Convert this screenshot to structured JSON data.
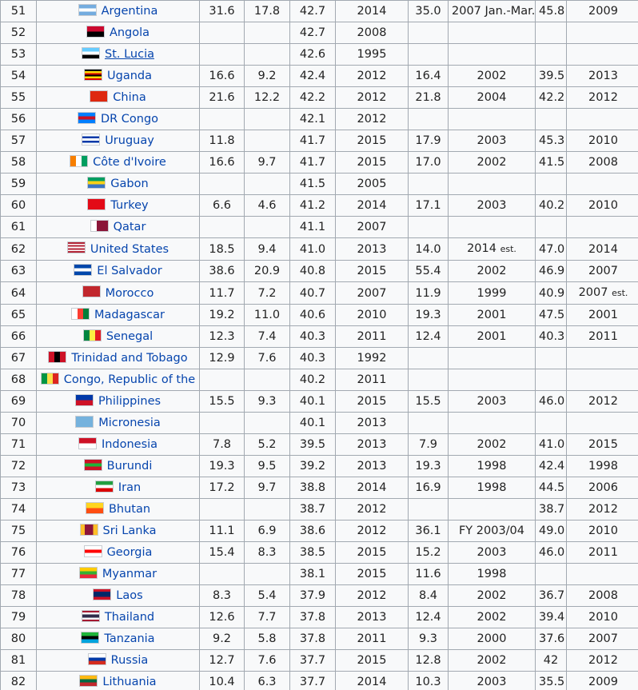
{
  "table": {
    "rows": [
      {
        "rank": "51",
        "country": "Argentina",
        "flag": [
          "#74acdf",
          "#ffffff",
          "#74acdf"
        ],
        "flag_dir": "h",
        "c1": "31.6",
        "c2": "17.8",
        "c3": "42.7",
        "c4": "2014",
        "c5": "35.0",
        "c6": "2007 Jan.-Mar.",
        "c7": "45.8",
        "c8": "2009"
      },
      {
        "rank": "52",
        "country": "Angola",
        "flag": [
          "#cc092f",
          "#000000"
        ],
        "flag_dir": "h",
        "c1": "",
        "c2": "",
        "c3": "42.7",
        "c4": "2008",
        "c5": "",
        "c6": "",
        "c7": "",
        "c8": ""
      },
      {
        "rank": "53",
        "country": "St. Lucia",
        "flag": [
          "#66ccff",
          "#ffffff",
          "#000000"
        ],
        "flag_dir": "h",
        "underline": true,
        "c1": "",
        "c2": "",
        "c3": "42.6",
        "c4": "1995",
        "c5": "",
        "c6": "",
        "c7": "",
        "c8": ""
      },
      {
        "rank": "54",
        "country": "Uganda",
        "flag": [
          "#000000",
          "#fcdc04",
          "#d90000",
          "#000000",
          "#fcdc04",
          "#d90000"
        ],
        "flag_dir": "h",
        "c1": "16.6",
        "c2": "9.2",
        "c3": "42.4",
        "c4": "2012",
        "c5": "16.4",
        "c6": "2002",
        "c7": "39.5",
        "c8": "2013"
      },
      {
        "rank": "55",
        "country": "China",
        "flag": [
          "#de2910"
        ],
        "flag_dir": "h",
        "c1": "21.6",
        "c2": "12.2",
        "c3": "42.2",
        "c4": "2012",
        "c5": "21.8",
        "c6": "2004",
        "c7": "42.2",
        "c8": "2012"
      },
      {
        "rank": "56",
        "country": "DR Congo",
        "flag": [
          "#007fff",
          "#ce1021",
          "#007fff"
        ],
        "flag_dir": "h",
        "c1": "",
        "c2": "",
        "c3": "42.1",
        "c4": "2012",
        "c5": "",
        "c6": "",
        "c7": "",
        "c8": ""
      },
      {
        "rank": "57",
        "country": "Uruguay",
        "flag": [
          "#ffffff",
          "#0038a8",
          "#ffffff",
          "#0038a8",
          "#ffffff"
        ],
        "flag_dir": "h",
        "c1": "11.8",
        "c2": "",
        "c3": "41.7",
        "c4": "2015",
        "c5": "17.9",
        "c6": "2003",
        "c7": "45.3",
        "c8": "2010"
      },
      {
        "rank": "58",
        "country": "Côte d'Ivoire",
        "flag": [
          "#f77f00",
          "#ffffff",
          "#009e60"
        ],
        "flag_dir": "v",
        "c1": "16.6",
        "c2": "9.7",
        "c3": "41.7",
        "c4": "2015",
        "c5": "17.0",
        "c6": "2002",
        "c7": "41.5",
        "c8": "2008"
      },
      {
        "rank": "59",
        "country": "Gabon",
        "flag": [
          "#009e60",
          "#fcd116",
          "#3a75c4"
        ],
        "flag_dir": "h",
        "c1": "",
        "c2": "",
        "c3": "41.5",
        "c4": "2005",
        "c5": "",
        "c6": "",
        "c7": "",
        "c8": ""
      },
      {
        "rank": "60",
        "country": "Turkey",
        "flag": [
          "#e30a17"
        ],
        "flag_dir": "h",
        "c1": "6.6",
        "c2": "4.6",
        "c3": "41.2",
        "c4": "2014",
        "c5": "17.1",
        "c6": "2003",
        "c7": "40.2",
        "c8": "2010"
      },
      {
        "rank": "61",
        "country": "Qatar",
        "flag": [
          "#ffffff",
          "#8a1538",
          "#8a1538"
        ],
        "flag_dir": "v",
        "c1": "",
        "c2": "",
        "c3": "41.1",
        "c4": "2007",
        "c5": "",
        "c6": "",
        "c7": "",
        "c8": ""
      },
      {
        "rank": "62",
        "country": "United States",
        "flag": [
          "#b22234",
          "#ffffff",
          "#b22234",
          "#ffffff",
          "#b22234",
          "#ffffff",
          "#b22234"
        ],
        "flag_dir": "h",
        "c1": "18.5",
        "c2": "9.4",
        "c3": "41.0",
        "c4": "2013",
        "c5": "14.0",
        "c6": "2014",
        "c6_suffix": "est.",
        "c7": "47.0",
        "c8": "2014"
      },
      {
        "rank": "63",
        "country": "El Salvador",
        "flag": [
          "#0047ab",
          "#ffffff",
          "#0047ab"
        ],
        "flag_dir": "h",
        "c1": "38.6",
        "c2": "20.9",
        "c3": "40.8",
        "c4": "2015",
        "c5": "55.4",
        "c6": "2002",
        "c7": "46.9",
        "c8": "2007"
      },
      {
        "rank": "64",
        "country": "Morocco",
        "flag": [
          "#c1272d"
        ],
        "flag_dir": "h",
        "c1": "11.7",
        "c2": "7.2",
        "c3": "40.7",
        "c4": "2007",
        "c5": "11.9",
        "c6": "1999",
        "c7": "40.9",
        "c8": "2007",
        "c8_suffix": "est."
      },
      {
        "rank": "65",
        "country": "Madagascar",
        "flag": [
          "#ffffff",
          "#fc3d32",
          "#007e3a"
        ],
        "flag_dir": "v",
        "c1": "19.2",
        "c2": "11.0",
        "c3": "40.6",
        "c4": "2010",
        "c5": "19.3",
        "c6": "2001",
        "c7": "47.5",
        "c8": "2001"
      },
      {
        "rank": "66",
        "country": "Senegal",
        "flag": [
          "#00853f",
          "#fdef42",
          "#e31b23"
        ],
        "flag_dir": "v",
        "c1": "12.3",
        "c2": "7.4",
        "c3": "40.3",
        "c4": "2011",
        "c5": "12.4",
        "c6": "2001",
        "c7": "40.3",
        "c8": "2011"
      },
      {
        "rank": "67",
        "country": "Trinidad and Tobago",
        "flag": [
          "#ce1126",
          "#000000",
          "#ce1126"
        ],
        "flag_dir": "v",
        "c1": "12.9",
        "c2": "7.6",
        "c3": "40.3",
        "c4": "1992",
        "c5": "",
        "c6": "",
        "c7": "",
        "c8": ""
      },
      {
        "rank": "68",
        "country": "Congo, Republic of the",
        "flag": [
          "#009543",
          "#fbde4a",
          "#dc241f"
        ],
        "flag_dir": "v",
        "c1": "",
        "c2": "",
        "c3": "40.2",
        "c4": "2011",
        "c5": "",
        "c6": "",
        "c7": "",
        "c8": ""
      },
      {
        "rank": "69",
        "country": "Philippines",
        "flag": [
          "#0038a8",
          "#ce1126"
        ],
        "flag_dir": "h",
        "c1": "15.5",
        "c2": "9.3",
        "c3": "40.1",
        "c4": "2015",
        "c5": "15.5",
        "c6": "2003",
        "c7": "46.0",
        "c8": "2012"
      },
      {
        "rank": "70",
        "country": "Micronesia",
        "flag": [
          "#75b2dd"
        ],
        "flag_dir": "h",
        "c1": "",
        "c2": "",
        "c3": "40.1",
        "c4": "2013",
        "c5": "",
        "c6": "",
        "c7": "",
        "c8": ""
      },
      {
        "rank": "71",
        "country": "Indonesia",
        "flag": [
          "#ce1126",
          "#ffffff"
        ],
        "flag_dir": "h",
        "c1": "7.8",
        "c2": "5.2",
        "c3": "39.5",
        "c4": "2013",
        "c5": "7.9",
        "c6": "2002",
        "c7": "41.0",
        "c8": "2015"
      },
      {
        "rank": "72",
        "country": "Burundi",
        "flag": [
          "#ce1126",
          "#1eb53a",
          "#ce1126"
        ],
        "flag_dir": "h",
        "c1": "19.3",
        "c2": "9.5",
        "c3": "39.2",
        "c4": "2013",
        "c5": "19.3",
        "c6": "1998",
        "c7": "42.4",
        "c8": "1998"
      },
      {
        "rank": "73",
        "country": "Iran",
        "flag": [
          "#239f40",
          "#ffffff",
          "#da0000"
        ],
        "flag_dir": "h",
        "c1": "17.2",
        "c2": "9.7",
        "c3": "38.8",
        "c4": "2014",
        "c5": "16.9",
        "c6": "1998",
        "c7": "44.5",
        "c8": "2006"
      },
      {
        "rank": "74",
        "country": "Bhutan",
        "flag": [
          "#ffd520",
          "#ff4e12"
        ],
        "flag_dir": "h",
        "c1": "",
        "c2": "",
        "c3": "38.7",
        "c4": "2012",
        "c5": "",
        "c6": "",
        "c7": "38.7",
        "c8": "2012"
      },
      {
        "rank": "75",
        "country": "Sri Lanka",
        "flag": [
          "#ffbe29",
          "#8d153a",
          "#8d153a",
          "#ffbe29"
        ],
        "flag_dir": "v",
        "c1": "11.1",
        "c2": "6.9",
        "c3": "38.6",
        "c4": "2012",
        "c5": "36.1",
        "c6": "FY 2003/04",
        "c7": "49.0",
        "c8": "2010"
      },
      {
        "rank": "76",
        "country": "Georgia",
        "flag": [
          "#ffffff",
          "#ff0000",
          "#ffffff"
        ],
        "flag_dir": "h",
        "c1": "15.4",
        "c2": "8.3",
        "c3": "38.5",
        "c4": "2015",
        "c5": "15.2",
        "c6": "2003",
        "c7": "46.0",
        "c8": "2011"
      },
      {
        "rank": "77",
        "country": "Myanmar",
        "flag": [
          "#fecb00",
          "#34b233",
          "#ea2839"
        ],
        "flag_dir": "h",
        "c1": "",
        "c2": "",
        "c3": "38.1",
        "c4": "2015",
        "c5": "11.6",
        "c6": "1998",
        "c7": "",
        "c8": ""
      },
      {
        "rank": "78",
        "country": "Laos",
        "flag": [
          "#ce1126",
          "#002868",
          "#002868",
          "#ce1126"
        ],
        "flag_dir": "h",
        "c1": "8.3",
        "c2": "5.4",
        "c3": "37.9",
        "c4": "2012",
        "c5": "8.4",
        "c6": "2002",
        "c7": "36.7",
        "c8": "2008"
      },
      {
        "rank": "79",
        "country": "Thailand",
        "flag": [
          "#a51931",
          "#f4f5f8",
          "#2d2a4a",
          "#2d2a4a",
          "#f4f5f8",
          "#a51931"
        ],
        "flag_dir": "h",
        "c1": "12.6",
        "c2": "7.7",
        "c3": "37.8",
        "c4": "2013",
        "c5": "12.4",
        "c6": "2002",
        "c7": "39.4",
        "c8": "2010"
      },
      {
        "rank": "80",
        "country": "Tanzania",
        "flag": [
          "#1eb53a",
          "#000000",
          "#00a3dd"
        ],
        "flag_dir": "h",
        "c1": "9.2",
        "c2": "5.8",
        "c3": "37.8",
        "c4": "2011",
        "c5": "9.3",
        "c6": "2000",
        "c7": "37.6",
        "c8": "2007"
      },
      {
        "rank": "81",
        "country": "Russia",
        "flag": [
          "#ffffff",
          "#0039a6",
          "#d52b1e"
        ],
        "flag_dir": "h",
        "c1": "12.7",
        "c2": "7.6",
        "c3": "37.7",
        "c4": "2015",
        "c5": "12.8",
        "c6": "2002",
        "c7": "42",
        "c8": "2012"
      },
      {
        "rank": "82",
        "country": "Lithuania",
        "flag": [
          "#fdb913",
          "#006a44",
          "#c1272d"
        ],
        "flag_dir": "h",
        "c1": "10.4",
        "c2": "6.3",
        "c3": "37.7",
        "c4": "2014",
        "c5": "10.3",
        "c6": "2003",
        "c7": "35.5",
        "c8": "2009"
      }
    ]
  }
}
